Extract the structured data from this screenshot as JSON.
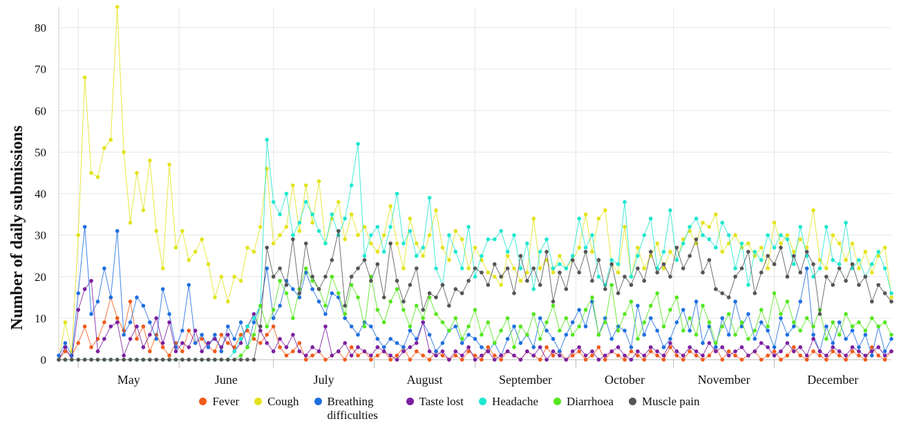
{
  "chart_data": {
    "type": "line",
    "ylabel": "Number of daily submissions",
    "x": [
      0,
      2,
      4,
      6,
      8,
      10,
      12,
      14,
      16,
      18,
      20,
      22,
      24,
      26,
      28,
      30,
      32,
      34,
      36,
      38,
      40,
      42,
      44,
      46,
      48,
      50,
      52,
      54,
      56,
      58,
      60,
      62,
      64,
      66,
      68,
      70,
      72,
      74,
      76,
      78,
      80,
      82,
      84,
      86,
      88,
      90,
      92,
      94,
      96,
      98,
      100,
      102,
      104,
      106,
      108,
      110,
      112,
      114,
      116,
      118,
      120,
      122,
      124,
      126,
      128,
      130,
      132,
      134,
      136,
      138,
      140,
      142,
      144,
      146,
      148,
      150,
      152,
      154,
      156,
      158,
      160,
      162,
      164,
      166,
      168,
      170,
      172,
      174,
      176,
      178,
      180,
      182,
      184,
      186,
      188,
      190,
      192,
      194,
      196,
      198,
      200,
      202,
      204,
      206,
      208,
      210,
      212,
      214,
      216,
      218,
      220,
      222,
      224,
      226,
      228,
      230,
      232,
      234,
      236,
      238,
      240,
      242,
      244,
      246,
      248,
      250,
      252,
      254,
      256
    ],
    "xlim": [
      0,
      256
    ],
    "xticks": [
      {
        "value": 6,
        "label": "May"
      },
      {
        "value": 37,
        "label": "June"
      },
      {
        "value": 66,
        "label": "July"
      },
      {
        "value": 97,
        "label": "August"
      },
      {
        "value": 128,
        "label": "September"
      },
      {
        "value": 159,
        "label": "October"
      },
      {
        "value": 189,
        "label": "November"
      },
      {
        "value": 220,
        "label": "December"
      }
    ],
    "ylim": [
      0,
      85
    ],
    "yticks": [
      0,
      10,
      20,
      30,
      40,
      50,
      60,
      70,
      80
    ],
    "grid": true,
    "legend": "bottom",
    "series": [
      {
        "name": "Fever",
        "color": "#f05a1a",
        "values": [
          0,
          2,
          1,
          4,
          8,
          3,
          5,
          9,
          15,
          10,
          7,
          14,
          5,
          8,
          2,
          6,
          3,
          1,
          4,
          2,
          7,
          4,
          5,
          3,
          2,
          6,
          4,
          3,
          6,
          7,
          5,
          4,
          6,
          8,
          3,
          1,
          2,
          4,
          0,
          1,
          2,
          0,
          1,
          2,
          0,
          3,
          1,
          2,
          0,
          1,
          2,
          0,
          1,
          3,
          0,
          2,
          1,
          0,
          2,
          1,
          0,
          1,
          0,
          2,
          1,
          0,
          3,
          1,
          0,
          2,
          1,
          0,
          2,
          1,
          0,
          3,
          1,
          2,
          0,
          1,
          2,
          0,
          1,
          3,
          0,
          2,
          1,
          0,
          2,
          1,
          0,
          2,
          1,
          0,
          3,
          1,
          0,
          2,
          1,
          0,
          1,
          3,
          0,
          2,
          1,
          0,
          1,
          2,
          0,
          1,
          2,
          0,
          1,
          3,
          1,
          0,
          2,
          1,
          0,
          2,
          1,
          0,
          2,
          1,
          0,
          3,
          1,
          0,
          2
        ]
      },
      {
        "name": "Cough",
        "color": "#e3e31c",
        "values": [
          0,
          9,
          2,
          30,
          68,
          45,
          44,
          51,
          53,
          85,
          50,
          33,
          45,
          36,
          48,
          31,
          22,
          47,
          27,
          31,
          24,
          26,
          29,
          23,
          15,
          20,
          14,
          20,
          19,
          27,
          26,
          32,
          46,
          28,
          30,
          32,
          42,
          31,
          42,
          33,
          43,
          28,
          34,
          38,
          29,
          35,
          30,
          32,
          28,
          26,
          30,
          37,
          28,
          22,
          34,
          28,
          25,
          30,
          36,
          27,
          24,
          31,
          29,
          22,
          27,
          24,
          21,
          20,
          18,
          25,
          22,
          19,
          21,
          34,
          22,
          24,
          21,
          25,
          22,
          24,
          27,
          35,
          26,
          34,
          36,
          23,
          21,
          32,
          20,
          27,
          22,
          25,
          28,
          22,
          26,
          24,
          29,
          31,
          28,
          33,
          32,
          35,
          26,
          28,
          30,
          27,
          28,
          25,
          27,
          22,
          33,
          28,
          30,
          26,
          29,
          27,
          36,
          24,
          22,
          30,
          28,
          24,
          28,
          22,
          26,
          21,
          25,
          27,
          15
        ]
      },
      {
        "name": "Breathing difficulties",
        "color": "#1f6fe0",
        "values": [
          1,
          4,
          1,
          16,
          32,
          11,
          14,
          22,
          15,
          31,
          6,
          9,
          15,
          13,
          9,
          5,
          17,
          11,
          3,
          7,
          18,
          4,
          6,
          3,
          6,
          2,
          8,
          5,
          9,
          3,
          9,
          13,
          22,
          10,
          13,
          19,
          17,
          15,
          21,
          17,
          14,
          11,
          16,
          15,
          10,
          8,
          6,
          9,
          8,
          5,
          3,
          5,
          4,
          3,
          7,
          5,
          9,
          6,
          2,
          4,
          7,
          8,
          4,
          6,
          5,
          3,
          2,
          4,
          1,
          5,
          8,
          4,
          6,
          3,
          10,
          7,
          5,
          2,
          6,
          9,
          12,
          8,
          14,
          6,
          10,
          5,
          8,
          7,
          3,
          13,
          6,
          10,
          7,
          3,
          5,
          9,
          12,
          7,
          14,
          4,
          8,
          3,
          10,
          6,
          14,
          8,
          11,
          5,
          9,
          7,
          3,
          10,
          6,
          8,
          14,
          22,
          6,
          2,
          8,
          4,
          9,
          5,
          7,
          3,
          6,
          1,
          8,
          2,
          5
        ]
      },
      {
        "name": "Taste lost",
        "color": "#7a1fa0",
        "values": [
          0,
          3,
          0,
          12,
          17,
          19,
          2,
          5,
          8,
          9,
          1,
          5,
          8,
          3,
          6,
          10,
          4,
          9,
          2,
          4,
          3,
          7,
          2,
          4,
          5,
          3,
          6,
          2,
          4,
          8,
          11,
          7,
          4,
          2,
          5,
          3,
          6,
          2,
          1,
          3,
          2,
          8,
          1,
          2,
          4,
          1,
          3,
          2,
          1,
          3,
          2,
          1,
          0,
          2,
          3,
          4,
          9,
          2,
          1,
          2,
          0,
          2,
          1,
          3,
          0,
          1,
          2,
          0,
          1,
          2,
          1,
          0,
          2,
          1,
          3,
          0,
          2,
          1,
          0,
          2,
          3,
          1,
          2,
          0,
          1,
          2,
          3,
          1,
          0,
          2,
          1,
          3,
          2,
          1,
          4,
          2,
          1,
          3,
          2,
          1,
          4,
          2,
          3,
          1,
          2,
          3,
          1,
          2,
          4,
          3,
          1,
          2,
          4,
          2,
          3,
          1,
          5,
          2,
          1,
          3,
          2,
          1,
          3,
          2,
          1,
          2,
          3,
          1,
          2
        ]
      },
      {
        "name": "Headache",
        "color": "#1ee8d0",
        "values": [
          0,
          0,
          0,
          0,
          0,
          0,
          0,
          0,
          0,
          0,
          0,
          0,
          0,
          0,
          0,
          0,
          0,
          0,
          0,
          0,
          0,
          0,
          0,
          0,
          0,
          0,
          0,
          2,
          5,
          8,
          10,
          13,
          53,
          38,
          35,
          40,
          30,
          33,
          38,
          35,
          31,
          28,
          35,
          30,
          34,
          42,
          52,
          25,
          30,
          32,
          26,
          32,
          40,
          28,
          31,
          25,
          27,
          39,
          22,
          18,
          30,
          26,
          22,
          32,
          20,
          25,
          29,
          29,
          31,
          26,
          30,
          22,
          28,
          17,
          26,
          29,
          22,
          23,
          22,
          25,
          34,
          27,
          30,
          20,
          18,
          24,
          23,
          38,
          20,
          25,
          30,
          34,
          22,
          26,
          36,
          24,
          28,
          32,
          34,
          30,
          29,
          27,
          33,
          30,
          22,
          28,
          18,
          26,
          24,
          30,
          27,
          30,
          29,
          23,
          32,
          25,
          20,
          22,
          32,
          24,
          23,
          33,
          22,
          24,
          20,
          23,
          26,
          22,
          16
        ]
      },
      {
        "name": "Diarrhoea",
        "color": "#55e61e",
        "values": [
          0,
          0,
          0,
          0,
          0,
          0,
          0,
          0,
          0,
          0,
          0,
          0,
          0,
          0,
          0,
          0,
          0,
          0,
          0,
          0,
          0,
          0,
          0,
          0,
          0,
          0,
          0,
          0,
          1,
          3,
          6,
          13,
          8,
          12,
          19,
          16,
          10,
          17,
          22,
          19,
          17,
          13,
          20,
          16,
          11,
          18,
          15,
          8,
          20,
          12,
          9,
          14,
          17,
          12,
          8,
          13,
          10,
          15,
          11,
          9,
          7,
          10,
          5,
          8,
          12,
          6,
          9,
          4,
          7,
          10,
          3,
          8,
          6,
          11,
          5,
          9,
          13,
          7,
          10,
          6,
          8,
          12,
          15,
          6,
          9,
          18,
          7,
          11,
          14,
          5,
          9,
          13,
          16,
          8,
          12,
          15,
          7,
          10,
          6,
          13,
          9,
          4,
          8,
          11,
          6,
          9,
          5,
          7,
          12,
          8,
          16,
          11,
          14,
          9,
          7,
          10,
          8,
          12,
          5,
          9,
          6,
          11,
          8,
          9,
          7,
          10,
          8,
          9,
          6
        ]
      },
      {
        "name": "Muscle pain",
        "color": "#555555",
        "values": [
          0,
          0,
          0,
          0,
          0,
          0,
          0,
          0,
          0,
          0,
          0,
          0,
          0,
          0,
          0,
          0,
          0,
          0,
          0,
          0,
          0,
          0,
          0,
          0,
          0,
          0,
          0,
          0,
          0,
          0,
          0,
          8,
          27,
          20,
          22,
          18,
          29,
          16,
          28,
          20,
          17,
          20,
          24,
          31,
          13,
          20,
          22,
          24,
          19,
          23,
          15,
          28,
          19,
          14,
          18,
          22,
          12,
          16,
          15,
          18,
          13,
          17,
          16,
          19,
          22,
          21,
          18,
          23,
          20,
          22,
          16,
          25,
          19,
          22,
          18,
          26,
          14,
          21,
          17,
          24,
          21,
          26,
          19,
          24,
          17,
          23,
          16,
          20,
          18,
          22,
          19,
          26,
          21,
          23,
          20,
          27,
          22,
          25,
          29,
          21,
          24,
          17,
          16,
          15,
          20,
          22,
          26,
          16,
          21,
          25,
          23,
          27,
          20,
          25,
          21,
          26,
          23,
          11,
          20,
          18,
          22,
          19,
          23,
          18,
          20,
          14,
          18,
          16,
          14
        ]
      }
    ]
  }
}
